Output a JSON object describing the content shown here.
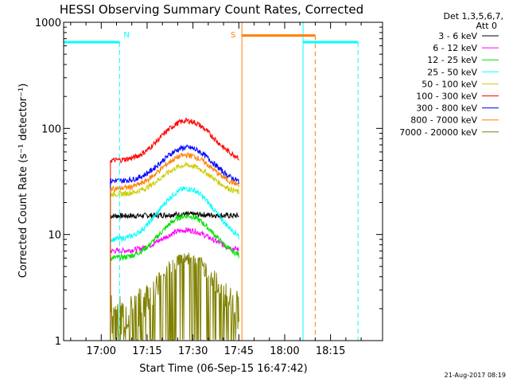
{
  "chart_data": {
    "type": "line",
    "title": "HESSI Observing Summary Count Rates, Corrected",
    "xlabel": "Start Time (06-Sep-15 16:47:42)",
    "ylabel": "Corrected Count Rate (s⁻¹ detector⁻¹)",
    "y_scale": "log",
    "ylim": [
      1,
      1000
    ],
    "xlim": [
      "16:47:42",
      "18:32:00"
    ],
    "x_tick_labels": [
      "17:00",
      "17:15",
      "17:30",
      "17:45",
      "18:00",
      "18:15"
    ],
    "y_tick_labels": [
      "1",
      "10",
      "100",
      "1000"
    ],
    "legend": {
      "header": [
        "Det 1,3,5,6,7,",
        "Att 0"
      ],
      "placement": "right"
    },
    "series": [
      {
        "name": "3 - 6 keV",
        "color": "#000000",
        "x": [
          "17:03",
          "17:45"
        ],
        "y": [
          15,
          15
        ],
        "peak": 15.5
      },
      {
        "name": "6 - 12 keV",
        "color": "#ff00ff",
        "x": [
          "17:03",
          "17:45"
        ],
        "y": [
          7,
          7
        ],
        "peak": 11
      },
      {
        "name": "12 - 25 keV",
        "color": "#00e000",
        "x": [
          "17:03",
          "17:45"
        ],
        "y": [
          6,
          6
        ],
        "peak": 15
      },
      {
        "name": "25 - 50 keV",
        "color": "#00ffff",
        "x": [
          "17:03",
          "17:45"
        ],
        "y": [
          9,
          9
        ],
        "peak": 27
      },
      {
        "name": "50 - 100 keV",
        "color": "#cccc00",
        "x": [
          "17:03",
          "17:45"
        ],
        "y": [
          24,
          24
        ],
        "peak": 45
      },
      {
        "name": "100 - 300 keV",
        "color": "#ff0000",
        "x": [
          "17:03",
          "17:45"
        ],
        "y": [
          50,
          50
        ],
        "peak": 118
      },
      {
        "name": "300 - 800 keV",
        "color": "#0000ff",
        "x": [
          "17:03",
          "17:45"
        ],
        "y": [
          32,
          30
        ],
        "peak": 66
      },
      {
        "name": "800 - 7000 keV",
        "color": "#ff8000",
        "x": [
          "17:03",
          "17:45"
        ],
        "y": [
          27,
          28
        ],
        "peak": 56
      },
      {
        "name": "7000 - 20000 keV",
        "color": "#808000",
        "x": [
          "17:03",
          "17:45"
        ],
        "y": [
          1.5,
          1.5
        ],
        "peak": 5.7
      }
    ],
    "annotations": [
      {
        "text": "N",
        "color": "#00ffff",
        "x": "17:06"
      },
      {
        "text": "S",
        "color": "#ff8000",
        "x": "17:45"
      }
    ],
    "intervals": [
      {
        "kind": "night",
        "color": "#00ffff",
        "start": "16:47:42",
        "end": "17:06",
        "level": 650
      },
      {
        "kind": "night",
        "color": "#00ffff",
        "start": "18:06",
        "end": "18:24",
        "level": 650
      },
      {
        "kind": "saa",
        "color": "#ff8000",
        "start": "17:46",
        "end": "18:10",
        "level": 750
      }
    ],
    "timestamp": "21-Aug-2017 08:19"
  }
}
